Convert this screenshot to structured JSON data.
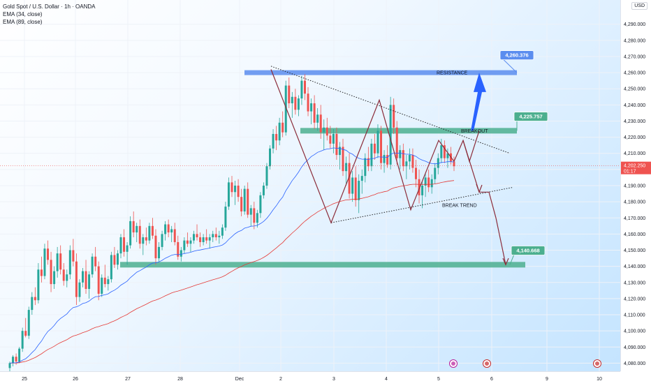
{
  "header": {
    "legend_main": "Gold Spot / U.S. Dollar · 1h · OANDA",
    "legend_ema1": "EMA (34, close)",
    "legend_ema2": "EMA (89, close)",
    "currency": "USD"
  },
  "chart_data": {
    "type": "candlestick",
    "symbol": "Gold Spot / U.S. Dollar",
    "interval": "1h",
    "exchange": "OANDA",
    "ylim": [
      4075,
      4305
    ],
    "y_ticks": [
      "4,290.000",
      "4,280.000",
      "4,270.000",
      "4,260.000",
      "4,250.000",
      "4,240.000",
      "4,230.000",
      "4,220.000",
      "4,210.000",
      "4,200.000",
      "4,190.000",
      "4,180.000",
      "4,170.000",
      "4,160.000",
      "4,150.000",
      "4,140.000",
      "4,130.000",
      "4,120.000",
      "4,110.000",
      "4,100.000",
      "4,090.000",
      "4,080.000"
    ],
    "x_ticks": [
      "25",
      "26",
      "27",
      "28",
      "Dec",
      "2",
      "3",
      "4",
      "5",
      "6",
      "9",
      "10"
    ],
    "last_price": "4,202.250",
    "countdown": "01:17",
    "annotations": {
      "resistance_label": "RESISTANCE",
      "breakout_label": "BREAKOUT",
      "break_trend_label": "BREAK TREND",
      "target_high": "4,260.376",
      "target_mid": "4,225.757",
      "target_low": "4,140.668"
    },
    "zones": [
      {
        "name": "resistance",
        "price": 4260,
        "color": "#5b8def"
      },
      {
        "name": "breakout",
        "price": 4224,
        "color": "#4caf8f"
      },
      {
        "name": "support",
        "price": 4141,
        "color": "#4caf8f"
      }
    ],
    "colors": {
      "up": "#26a69a",
      "down": "#ef5350",
      "ema34": "#2962ff",
      "ema89": "#e53935",
      "zig": "#8b2c3a",
      "arrow_up": "#2962ff"
    },
    "candles": [
      [
        4077,
        4081,
        4075,
        4080
      ],
      [
        4080,
        4085,
        4078,
        4084
      ],
      [
        4084,
        4086,
        4079,
        4081
      ],
      [
        4081,
        4090,
        4080,
        4089
      ],
      [
        4089,
        4102,
        4087,
        4100
      ],
      [
        4100,
        4108,
        4096,
        4097
      ],
      [
        4097,
        4115,
        4095,
        4113
      ],
      [
        4113,
        4124,
        4110,
        4121
      ],
      [
        4121,
        4127,
        4116,
        4119
      ],
      [
        4119,
        4142,
        4117,
        4138
      ],
      [
        4138,
        4146,
        4130,
        4134
      ],
      [
        4134,
        4154,
        4132,
        4151
      ],
      [
        4151,
        4156,
        4141,
        4144
      ],
      [
        4144,
        4149,
        4124,
        4129
      ],
      [
        4129,
        4140,
        4126,
        4137
      ],
      [
        4137,
        4152,
        4133,
        4148
      ],
      [
        4148,
        4153,
        4135,
        4138
      ],
      [
        4138,
        4142,
        4128,
        4131
      ],
      [
        4131,
        4138,
        4127,
        4135
      ],
      [
        4135,
        4153,
        4132,
        4150
      ],
      [
        4150,
        4157,
        4140,
        4143
      ],
      [
        4143,
        4148,
        4116,
        4121
      ],
      [
        4121,
        4132,
        4118,
        4130
      ],
      [
        4130,
        4139,
        4127,
        4137
      ],
      [
        4137,
        4144,
        4123,
        4126
      ],
      [
        4126,
        4137,
        4120,
        4135
      ],
      [
        4135,
        4148,
        4133,
        4146
      ],
      [
        4146,
        4152,
        4137,
        4140
      ],
      [
        4140,
        4143,
        4119,
        4123
      ],
      [
        4123,
        4135,
        4121,
        4133
      ],
      [
        4133,
        4141,
        4127,
        4129
      ],
      [
        4129,
        4134,
        4125,
        4132
      ],
      [
        4132,
        4149,
        4130,
        4147
      ],
      [
        4147,
        4152,
        4139,
        4141
      ],
      [
        4141,
        4150,
        4138,
        4148
      ],
      [
        4148,
        4160,
        4145,
        4158
      ],
      [
        4158,
        4163,
        4146,
        4149
      ],
      [
        4149,
        4155,
        4141,
        4153
      ],
      [
        4153,
        4171,
        4151,
        4168
      ],
      [
        4168,
        4174,
        4158,
        4161
      ],
      [
        4161,
        4167,
        4155,
        4165
      ],
      [
        4165,
        4169,
        4151,
        4154
      ],
      [
        4154,
        4160,
        4147,
        4158
      ],
      [
        4158,
        4164,
        4153,
        4156
      ],
      [
        4156,
        4167,
        4154,
        4165
      ],
      [
        4165,
        4170,
        4157,
        4159
      ],
      [
        4159,
        4163,
        4141,
        4145
      ],
      [
        4145,
        4155,
        4143,
        4152
      ],
      [
        4152,
        4162,
        4150,
        4160
      ],
      [
        4160,
        4168,
        4156,
        4166
      ],
      [
        4166,
        4169,
        4158,
        4161
      ],
      [
        4161,
        4165,
        4155,
        4163
      ],
      [
        4163,
        4167,
        4153,
        4155
      ],
      [
        4155,
        4159,
        4144,
        4146
      ],
      [
        4146,
        4152,
        4143,
        4150
      ],
      [
        4150,
        4158,
        4148,
        4156
      ],
      [
        4156,
        4161,
        4152,
        4154
      ],
      [
        4154,
        4158,
        4149,
        4156
      ],
      [
        4156,
        4162,
        4154,
        4160
      ],
      [
        4160,
        4166,
        4156,
        4158
      ],
      [
        4158,
        4161,
        4152,
        4155
      ],
      [
        4155,
        4160,
        4153,
        4158
      ],
      [
        4158,
        4163,
        4154,
        4156
      ],
      [
        4156,
        4160,
        4151,
        4158
      ],
      [
        4158,
        4162,
        4155,
        4160
      ],
      [
        4160,
        4164,
        4156,
        4158
      ],
      [
        4158,
        4162,
        4154,
        4159
      ],
      [
        4159,
        4166,
        4157,
        4164
      ],
      [
        4164,
        4180,
        4162,
        4177
      ],
      [
        4177,
        4195,
        4175,
        4192
      ],
      [
        4192,
        4196,
        4183,
        4186
      ],
      [
        4186,
        4193,
        4178,
        4190
      ],
      [
        4190,
        4194,
        4180,
        4183
      ],
      [
        4183,
        4188,
        4171,
        4174
      ],
      [
        4174,
        4190,
        4172,
        4188
      ],
      [
        4188,
        4192,
        4170,
        4172
      ],
      [
        4172,
        4178,
        4165,
        4176
      ],
      [
        4176,
        4180,
        4163,
        4167
      ],
      [
        4167,
        4175,
        4164,
        4173
      ],
      [
        4173,
        4186,
        4170,
        4184
      ],
      [
        4184,
        4192,
        4182,
        4190
      ],
      [
        4190,
        4204,
        4188,
        4202
      ],
      [
        4202,
        4215,
        4200,
        4213
      ],
      [
        4213,
        4225,
        4210,
        4222
      ],
      [
        4222,
        4227,
        4212,
        4218
      ],
      [
        4218,
        4232,
        4215,
        4229
      ],
      [
        4229,
        4236,
        4220,
        4223
      ],
      [
        4223,
        4255,
        4221,
        4252
      ],
      [
        4252,
        4257,
        4238,
        4241
      ],
      [
        4241,
        4248,
        4232,
        4245
      ],
      [
        4245,
        4250,
        4234,
        4237
      ],
      [
        4237,
        4246,
        4233,
        4244
      ],
      [
        4244,
        4258,
        4240,
        4255
      ],
      [
        4255,
        4259,
        4243,
        4247
      ],
      [
        4247,
        4251,
        4233,
        4236
      ],
      [
        4236,
        4244,
        4228,
        4241
      ],
      [
        4241,
        4246,
        4225,
        4229
      ],
      [
        4229,
        4238,
        4224,
        4234
      ],
      [
        4234,
        4240,
        4219,
        4223
      ],
      [
        4223,
        4231,
        4212,
        4226
      ],
      [
        4226,
        4232,
        4218,
        4221
      ],
      [
        4221,
        4227,
        4213,
        4216
      ],
      [
        4216,
        4225,
        4210,
        4222
      ],
      [
        4222,
        4226,
        4206,
        4209
      ],
      [
        4209,
        4217,
        4200,
        4214
      ],
      [
        4214,
        4219,
        4196,
        4199
      ],
      [
        4199,
        4208,
        4190,
        4204
      ],
      [
        4204,
        4210,
        4182,
        4185
      ],
      [
        4185,
        4199,
        4180,
        4195
      ],
      [
        4195,
        4202,
        4177,
        4181
      ],
      [
        4181,
        4197,
        4173,
        4193
      ],
      [
        4193,
        4200,
        4185,
        4196
      ],
      [
        4196,
        4210,
        4192,
        4207
      ],
      [
        4207,
        4214,
        4199,
        4202
      ],
      [
        4202,
        4219,
        4199,
        4216
      ],
      [
        4216,
        4222,
        4206,
        4210
      ],
      [
        4210,
        4228,
        4207,
        4224
      ],
      [
        4224,
        4227,
        4200,
        4204
      ],
      [
        4204,
        4212,
        4198,
        4209
      ],
      [
        4209,
        4215,
        4201,
        4203
      ],
      [
        4203,
        4245,
        4200,
        4240
      ],
      [
        4240,
        4244,
        4222,
        4226
      ],
      [
        4226,
        4230,
        4203,
        4207
      ],
      [
        4207,
        4215,
        4200,
        4212
      ],
      [
        4212,
        4216,
        4199,
        4202
      ],
      [
        4202,
        4209,
        4194,
        4205
      ],
      [
        4205,
        4213,
        4200,
        4209
      ],
      [
        4209,
        4213,
        4198,
        4201
      ],
      [
        4201,
        4206,
        4189,
        4194
      ],
      [
        4194,
        4200,
        4179,
        4184
      ],
      [
        4184,
        4193,
        4176,
        4190
      ],
      [
        4190,
        4198,
        4183,
        4195
      ],
      [
        4195,
        4200,
        4186,
        4189
      ],
      [
        4189,
        4197,
        4185,
        4194
      ],
      [
        4194,
        4204,
        4191,
        4201
      ],
      [
        4201,
        4210,
        4197,
        4207
      ],
      [
        4207,
        4219,
        4204,
        4215
      ],
      [
        4215,
        4218,
        4204,
        4207
      ],
      [
        4207,
        4213,
        4201,
        4210
      ],
      [
        4210,
        4214,
        4203,
        4205
      ],
      [
        4205,
        4208,
        4199,
        4202
      ]
    ]
  }
}
